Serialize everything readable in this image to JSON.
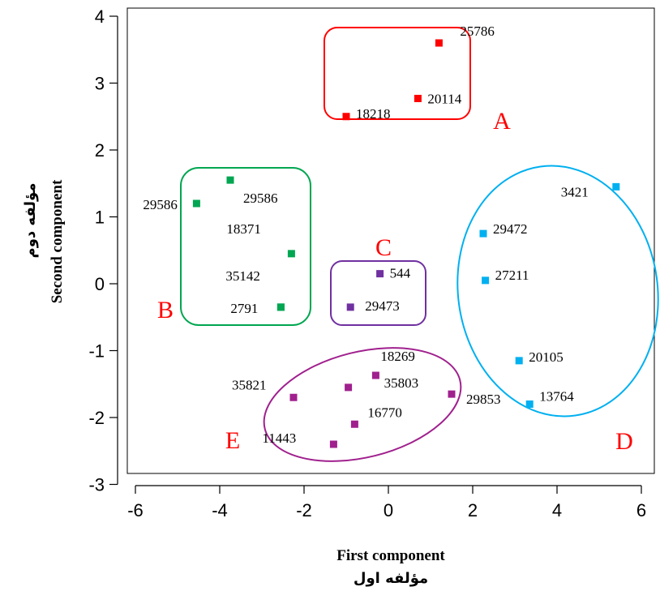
{
  "chart_data": {
    "type": "scatter",
    "xlabel": "First component",
    "xlabel_fa": "مؤلفه اول",
    "ylabel": "Second component",
    "ylabel_fa": "مؤلفه دوم",
    "xlim": [
      -6.5,
      6.5
    ],
    "ylim": [
      -3,
      4.1
    ],
    "x_ticks": [
      -6,
      -4,
      -2,
      0,
      2,
      4,
      6
    ],
    "x_tick_labels": [
      "-6",
      "-4",
      "-2",
      "0",
      "2",
      "4",
      "6"
    ],
    "y_ticks": [
      -3,
      -2,
      -1,
      0,
      1,
      2,
      3,
      4
    ],
    "y_tick_labels": [
      "-3",
      "-2",
      "-1",
      "0",
      "1",
      "2",
      "3",
      "4"
    ],
    "grid": false,
    "groups": [
      {
        "name": "A",
        "color": "#ff0000",
        "enclosure": "rounded-rect",
        "points": [
          {
            "label": "25786",
            "x": 1.2,
            "y": 3.6
          },
          {
            "label": "20114",
            "x": 0.7,
            "y": 2.77
          },
          {
            "label": "18218",
            "x": -1.0,
            "y": 2.5
          }
        ]
      },
      {
        "name": "B",
        "color": "#00a651",
        "enclosure": "rounded-rect",
        "points": [
          {
            "label": "29586",
            "x": -3.75,
            "y": 1.55
          },
          {
            "label": "29586",
            "x": -4.55,
            "y": 1.2
          },
          {
            "label": "18371",
            "x": -2.3,
            "y": 0.45
          },
          {
            "label": "35142",
            "x": -2.55,
            "y": -0.35
          },
          {
            "label": "2791",
            "x": -2.55,
            "y": -0.35
          }
        ]
      },
      {
        "name": "C",
        "color": "#7030a0",
        "enclosure": "rounded-rect",
        "points": [
          {
            "label": "544",
            "x": -0.2,
            "y": 0.15
          },
          {
            "label": "29473",
            "x": -0.9,
            "y": -0.35
          }
        ]
      },
      {
        "name": "D",
        "color": "#00b0f0",
        "enclosure": "ellipse",
        "points": [
          {
            "label": "3421",
            "x": 5.4,
            "y": 1.45
          },
          {
            "label": "29472",
            "x": 2.25,
            "y": 0.75
          },
          {
            "label": "27211",
            "x": 2.3,
            "y": 0.05
          },
          {
            "label": "20105",
            "x": 3.1,
            "y": -1.15
          },
          {
            "label": "13764",
            "x": 3.35,
            "y": -1.8
          }
        ]
      },
      {
        "name": "E",
        "color": "#a0208e",
        "enclosure": "ellipse",
        "points": [
          {
            "label": "18269",
            "x": -0.3,
            "y": -1.37
          },
          {
            "label": "35821",
            "x": -2.25,
            "y": -1.7
          },
          {
            "label": "35803",
            "x": -0.95,
            "y": -1.55
          },
          {
            "label": "29853",
            "x": 1.5,
            "y": -1.65
          },
          {
            "label": "16770",
            "x": -0.8,
            "y": -2.1
          },
          {
            "label": "11443",
            "x": -1.3,
            "y": -2.4
          }
        ]
      }
    ]
  }
}
